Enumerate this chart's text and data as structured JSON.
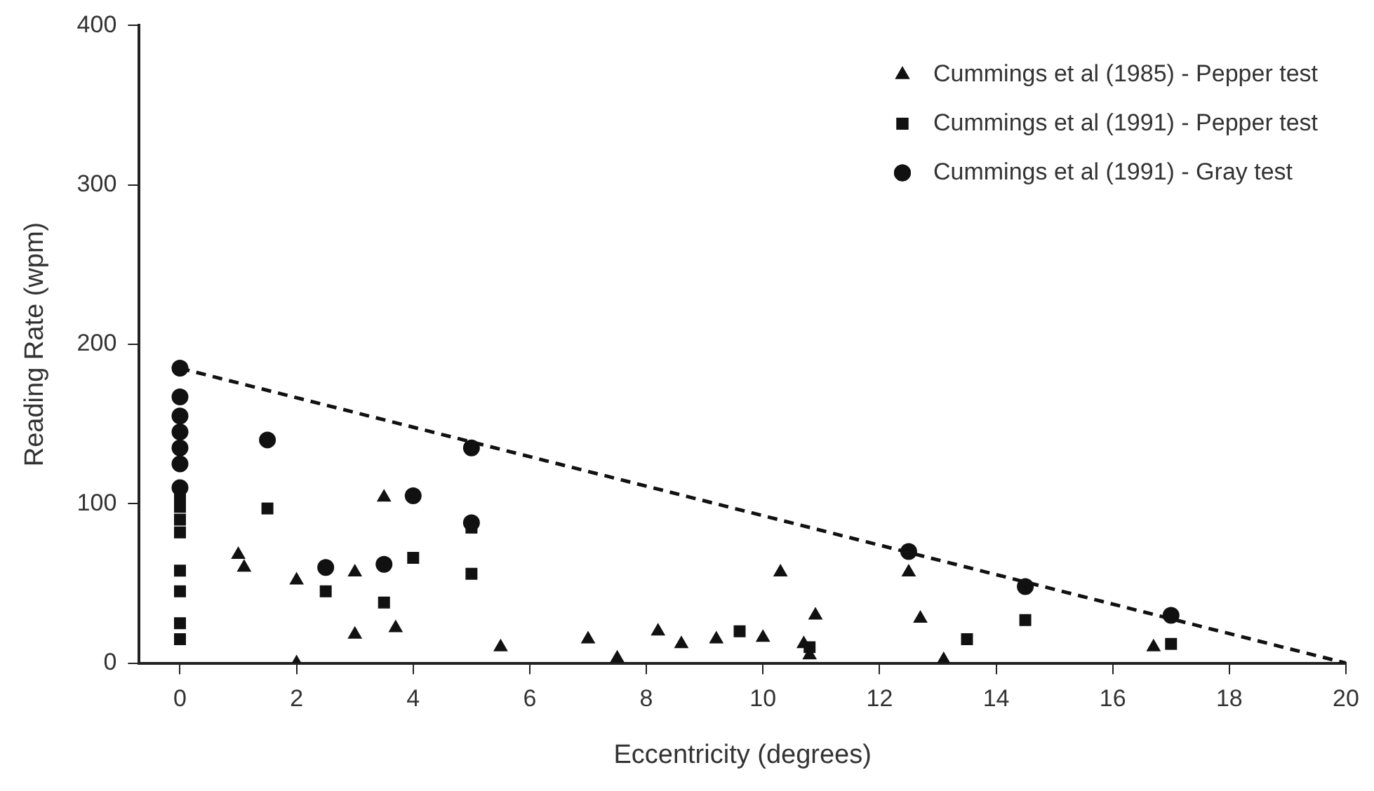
{
  "chart_data": {
    "type": "scatter",
    "xlabel": "Eccentricity (degrees)",
    "ylabel": "Reading Rate (wpm)",
    "xlim": [
      -0.7,
      20
    ],
    "xticks": [
      0,
      2,
      4,
      6,
      8,
      10,
      12,
      14,
      16,
      18,
      20
    ],
    "ylim": [
      0,
      400
    ],
    "yticks": [
      0,
      100,
      200,
      300,
      400
    ],
    "grid": false,
    "legend": "top right",
    "series": [
      {
        "name": "Cummings et al (1985) - Pepper test",
        "color": "#111111",
        "marker": "triangle",
        "x": [
          1,
          1.1,
          2,
          2,
          3,
          3,
          3.5,
          3.7,
          5.5,
          7,
          7.5,
          8.2,
          8.6,
          9.2,
          10,
          10.3,
          10.7,
          10.9,
          10.8,
          12.5,
          12.7,
          13.1,
          16.7
        ],
        "values": [
          68,
          60,
          52,
          0,
          57,
          18,
          104,
          22,
          10,
          15,
          3,
          20,
          12,
          15,
          16,
          57,
          12,
          30,
          5,
          57,
          28,
          2,
          10
        ]
      },
      {
        "name": "Cummings et al (1991) - Pepper test",
        "color": "#111111",
        "marker": "square",
        "x": [
          0,
          0,
          0,
          0,
          0,
          0,
          0,
          0,
          1.5,
          2.5,
          3.5,
          4,
          5,
          5,
          9.6,
          10.8,
          13.5,
          14.5,
          17
        ],
        "values": [
          105,
          98,
          90,
          82,
          58,
          45,
          25,
          15,
          97,
          45,
          38,
          66,
          85,
          56,
          20,
          10,
          15,
          27,
          12
        ]
      },
      {
        "name": "Cummings et al (1991) - Gray test",
        "color": "#111111",
        "marker": "circle",
        "x": [
          0,
          0,
          0,
          0,
          0,
          0,
          0,
          1.5,
          2.5,
          3.5,
          4,
          5,
          5,
          12.5,
          14.5,
          17
        ],
        "values": [
          185,
          167,
          155,
          145,
          135,
          125,
          110,
          140,
          60,
          62,
          105,
          135,
          88,
          70,
          48,
          30
        ]
      },
      {
        "type": "line",
        "color": "#111111",
        "line_style": "dashed",
        "marker": "none",
        "x": [
          0,
          20
        ],
        "values": [
          185,
          0
        ]
      }
    ]
  }
}
